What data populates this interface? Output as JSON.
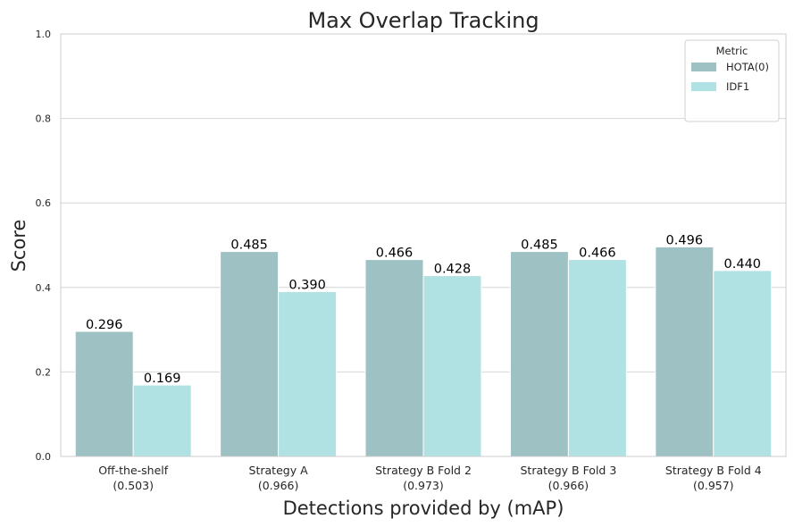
{
  "chart_data": {
    "type": "bar",
    "title": "Max Overlap Tracking",
    "xlabel": "Detections provided by (mAP)",
    "ylabel": "Score",
    "ylim": [
      0,
      1.0
    ],
    "yticks": [
      "0.0",
      "0.2",
      "0.4",
      "0.6",
      "0.8",
      "1.0"
    ],
    "grid": "horizontal",
    "legend_position": "top-right",
    "legend_title": "Metric",
    "categories": [
      [
        "Off-the-shelf",
        "(0.503)"
      ],
      [
        "Strategy A",
        "(0.966)"
      ],
      [
        "Strategy B Fold 2",
        "(0.973)"
      ],
      [
        "Strategy B Fold 3",
        "(0.966)"
      ],
      [
        "Strategy B Fold 4",
        "(0.957)"
      ]
    ],
    "series": [
      {
        "name": "HOTA(0)",
        "color": "#9ec1c4",
        "values": [
          0.296,
          0.485,
          0.466,
          0.485,
          0.496
        ],
        "labels": [
          "0.296",
          "0.485",
          "0.466",
          "0.485",
          "0.496"
        ]
      },
      {
        "name": "IDF1",
        "color": "#b0e2e4",
        "values": [
          0.169,
          0.39,
          0.428,
          0.466,
          0.44
        ],
        "labels": [
          "0.169",
          "0.390",
          "0.428",
          "0.466",
          "0.440"
        ]
      }
    ]
  }
}
